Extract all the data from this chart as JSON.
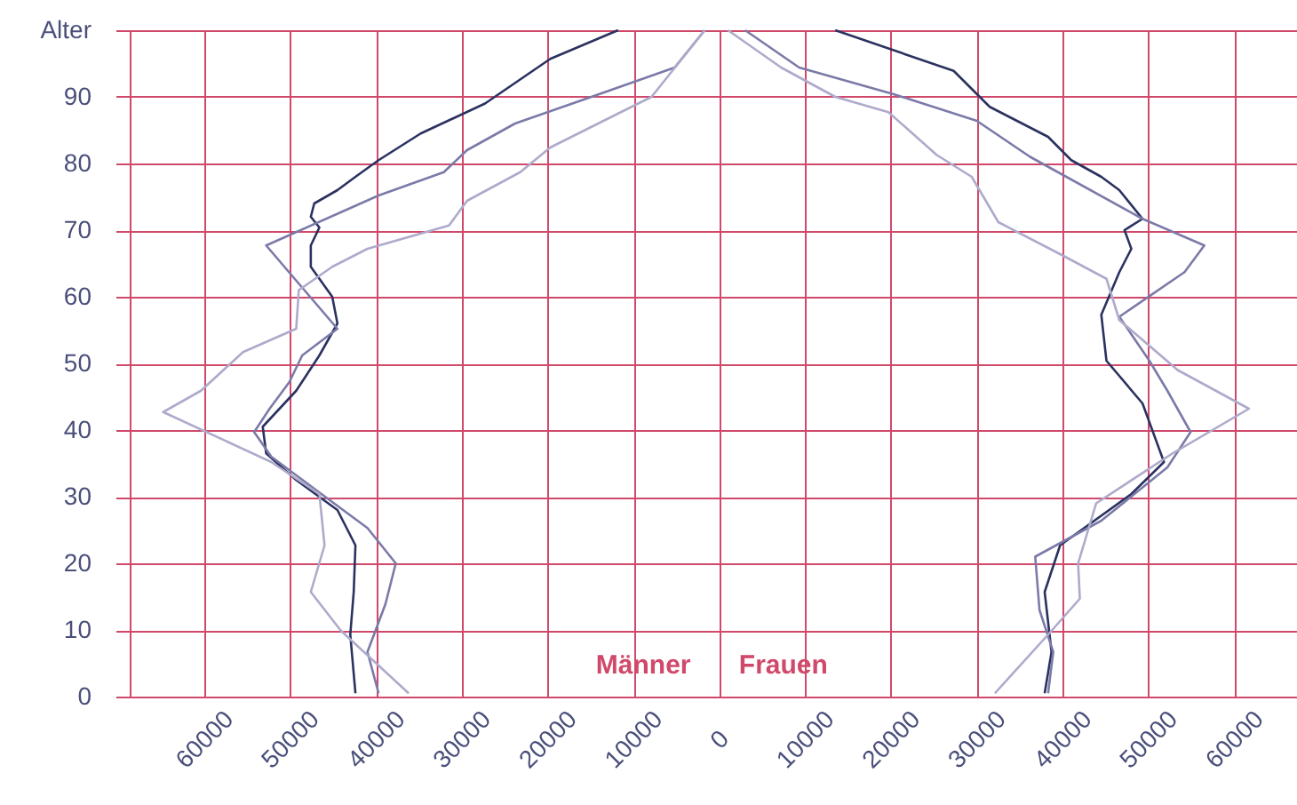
{
  "chart_data": {
    "type": "line",
    "series": [
      {
        "color": "#2b3260",
        "x": [
          -11800,
          -19700,
          -27300,
          -34800,
          -39700,
          -42400,
          -44500,
          -47200,
          -47600,
          -46600,
          -47600,
          -47600,
          -45100,
          -44500,
          -46600,
          -49300,
          -53200,
          -52800,
          -49300,
          -44500,
          -42400,
          -42600,
          -43000,
          -42400
        ],
        "values": [
          100,
          95.7,
          89,
          84.5,
          80.5,
          78,
          76,
          74,
          72,
          70.4,
          67.7,
          64.5,
          60,
          56,
          51.2,
          45.9,
          40.5,
          36.5,
          32.5,
          28,
          22.7,
          15.7,
          9.3,
          0.5
        ]
      },
      {
        "color": "#7b7aa8",
        "x": [
          -1700,
          -5200,
          -14900,
          -23800,
          -29400,
          -32100,
          -39700,
          -52800,
          -44500,
          -48600,
          -50100,
          -52400,
          -54200,
          -52200,
          -47200,
          -41000,
          -37700,
          -38900,
          -41000,
          -39700
        ],
        "values": [
          100,
          94.4,
          90,
          86,
          82,
          78.7,
          75.2,
          67.7,
          55.2,
          51.2,
          47.2,
          43.2,
          39.7,
          36,
          31.2,
          25.3,
          20,
          13.9,
          6.7,
          0.5
        ]
      },
      {
        "color": "#aeaacb",
        "x": [
          -1700,
          -7900,
          -13500,
          -19700,
          -23200,
          -29400,
          -31500,
          -41000,
          -45100,
          -49000,
          -49300,
          -55500,
          -60400,
          -64800,
          -52200,
          -46600,
          -46000,
          -47600,
          -44100,
          -36200
        ],
        "values": [
          100,
          90,
          86.4,
          82.4,
          78.7,
          74.4,
          70.7,
          67.2,
          64.5,
          61,
          55.2,
          51.7,
          45.9,
          42.7,
          35.2,
          30.4,
          22.7,
          15.7,
          9.9,
          0.5
        ]
      },
      {
        "color": "#2b3260",
        "x": [
          13500,
          27300,
          31500,
          38300,
          41000,
          44500,
          46600,
          49300,
          47200,
          48000,
          46600,
          44500,
          45100,
          49300,
          51800,
          48000,
          39700,
          37900,
          38700,
          37900
        ],
        "values": [
          100,
          93.9,
          88.5,
          84,
          80.5,
          78,
          76,
          71.7,
          70,
          67.2,
          63.7,
          57.3,
          50.4,
          44,
          35.2,
          30.4,
          22.7,
          15.7,
          6.7,
          0.5
        ]
      },
      {
        "color": "#7b7aa8",
        "x": [
          3000,
          9300,
          20300,
          30000,
          36200,
          49300,
          56500,
          54200,
          46600,
          50100,
          52200,
          54900,
          52200,
          44500,
          36800,
          37300,
          38900,
          38300
        ],
        "values": [
          100,
          94.4,
          90.4,
          86.4,
          81,
          71.7,
          67.7,
          63.7,
          57,
          50.4,
          45.9,
          39.7,
          34.4,
          26.4,
          21,
          13,
          6.7,
          0.5
        ]
      },
      {
        "color": "#aeaacb",
        "x": [
          1000,
          7200,
          13500,
          19700,
          25300,
          29400,
          32500,
          39700,
          45100,
          46600,
          53400,
          61700,
          52800,
          43900,
          41800,
          42000,
          38300,
          32100
        ],
        "values": [
          100,
          94.4,
          90,
          87.7,
          81.3,
          78,
          71.2,
          66.4,
          62.7,
          56.5,
          49,
          43.2,
          36.5,
          29,
          20,
          14.7,
          9.3,
          0.5
        ]
      }
    ],
    "xlim": [
      -68700,
      67300
    ],
    "xticks": [
      {
        "value": -60000,
        "label": "60000"
      },
      {
        "value": -50000,
        "label": "50000"
      },
      {
        "value": -40000,
        "label": "40000"
      },
      {
        "value": -30000,
        "label": "30000"
      },
      {
        "value": -20000,
        "label": "20000"
      },
      {
        "value": -10000,
        "label": "10000"
      },
      0,
      10000,
      20000,
      30000,
      40000,
      50000,
      60000
    ],
    "ylim": [
      0,
      100
    ],
    "yticks": [
      0,
      10,
      20,
      30,
      40,
      50,
      60,
      70,
      80,
      90,
      {
        "value": 100,
        "label": "Alter"
      }
    ],
    "grid": true,
    "annotations": [
      "Männer",
      "Frauen"
    ]
  }
}
